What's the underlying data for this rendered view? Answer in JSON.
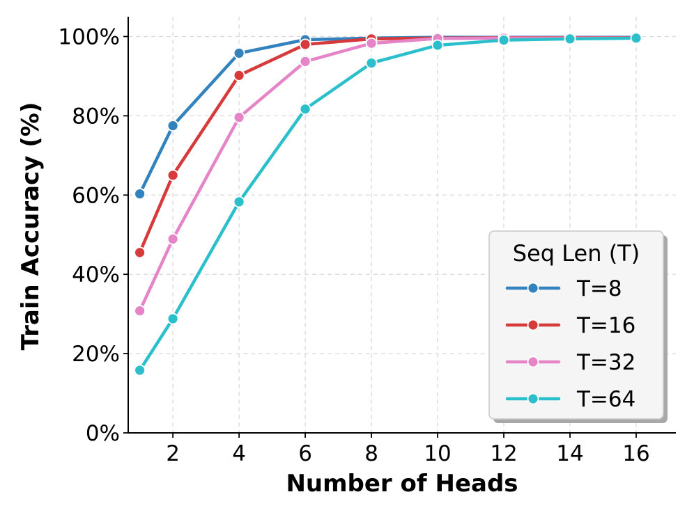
{
  "chart_data": {
    "type": "line",
    "title": "",
    "xlabel": "Number of Heads",
    "ylabel": "Train Accuracy (%)",
    "x": [
      1,
      2,
      4,
      6,
      8,
      10,
      12,
      14,
      16
    ],
    "xlim": [
      0.65,
      17.2
    ],
    "ylim": [
      0,
      105
    ],
    "x_ticks": [
      2,
      4,
      6,
      8,
      10,
      12,
      14,
      16
    ],
    "x_tick_labels": [
      "2",
      "4",
      "6",
      "8",
      "10",
      "12",
      "14",
      "16"
    ],
    "y_ticks": [
      0,
      20,
      40,
      60,
      80,
      100
    ],
    "y_tick_labels": [
      "0%",
      "20%",
      "40%",
      "60%",
      "80%",
      "100%"
    ],
    "grid": true,
    "legend": {
      "title": "Seq Len (T)",
      "placement": "bottom-right"
    },
    "series": [
      {
        "name": "T=8",
        "color": "#3282bd",
        "values": [
          60.3,
          77.5,
          95.8,
          99.2,
          99.6,
          99.8,
          99.8,
          99.8,
          99.8
        ]
      },
      {
        "name": "T=16",
        "color": "#d63a3a",
        "values": [
          45.5,
          65.0,
          90.2,
          98.0,
          99.4,
          99.6,
          99.7,
          99.7,
          99.7
        ]
      },
      {
        "name": "T=32",
        "color": "#e585c8",
        "values": [
          30.8,
          48.9,
          79.6,
          93.7,
          98.3,
          99.5,
          99.6,
          99.6,
          99.6
        ]
      },
      {
        "name": "T=64",
        "color": "#2bbfcc",
        "values": [
          15.8,
          28.8,
          58.3,
          81.7,
          93.3,
          97.8,
          99.1,
          99.4,
          99.6
        ]
      }
    ]
  }
}
